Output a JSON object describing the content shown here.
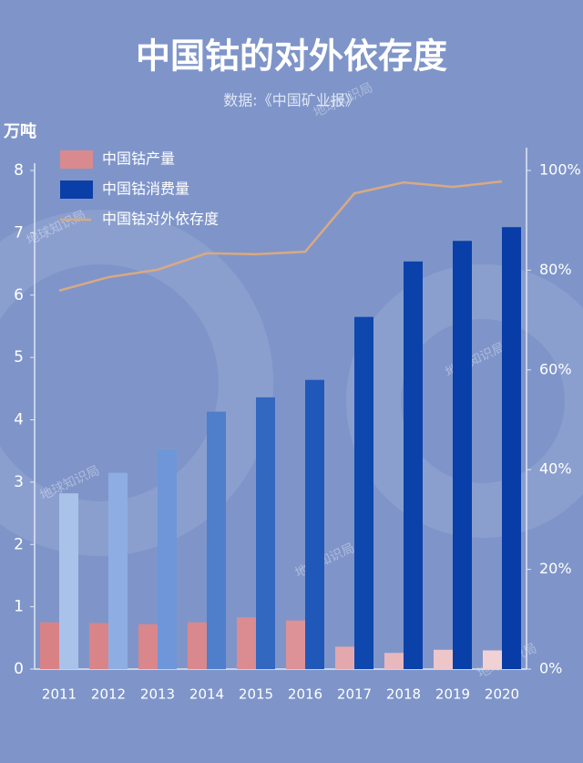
{
  "chart_data": {
    "type": "bar",
    "title": "中国钴的对外依存度",
    "subtitle": "数据:《中国矿业报》",
    "y_label": "万吨",
    "watermark": "地球知识局",
    "categories": [
      "2011",
      "2012",
      "2013",
      "2014",
      "2015",
      "2016",
      "2017",
      "2018",
      "2019",
      "2020"
    ],
    "ylim": [
      0,
      8
    ],
    "yticks": [
      0,
      1,
      2,
      3,
      4,
      5,
      6,
      7,
      8
    ],
    "y2lim": [
      0,
      100
    ],
    "y2ticks": [
      {
        "value": 0,
        "label": "0%"
      },
      {
        "value": 20,
        "label": "20%"
      },
      {
        "value": 40,
        "label": "40%"
      },
      {
        "value": 60,
        "label": "60%"
      },
      {
        "value": 80,
        "label": "80%"
      },
      {
        "value": 100,
        "label": "100%"
      }
    ],
    "series": [
      {
        "name": "中国钴产量",
        "type": "bar",
        "color": "#d98a8e",
        "colors": [
          "#d98286",
          "#d98488",
          "#d9878b",
          "#d9898d",
          "#da8c90",
          "#dc9296",
          "#e3a8ad",
          "#e8b8bd",
          "#edc6ca",
          "#f0d2d5"
        ],
        "values": [
          0.75,
          0.74,
          0.72,
          0.75,
          0.83,
          0.78,
          0.36,
          0.26,
          0.31,
          0.3
        ]
      },
      {
        "name": "中国钴消费量",
        "type": "bar",
        "color": "#0a3fa8",
        "colors": [
          "#a9c2ea",
          "#8eaee3",
          "#6e96d8",
          "#4f7ecb",
          "#3368c0",
          "#2058b9",
          "#0e47ad",
          "#0a42aa",
          "#093fa8",
          "#083ca6"
        ],
        "values": [
          2.82,
          3.15,
          3.52,
          4.13,
          4.36,
          4.64,
          5.65,
          6.54,
          6.87,
          7.09
        ]
      },
      {
        "name": "中国钴对外依存度",
        "type": "line",
        "axis": "y2",
        "color": "#d9a982",
        "values": [
          75.9,
          78.6,
          80.1,
          83.4,
          83.2,
          83.7,
          95.4,
          97.6,
          96.7,
          97.8
        ]
      }
    ]
  }
}
